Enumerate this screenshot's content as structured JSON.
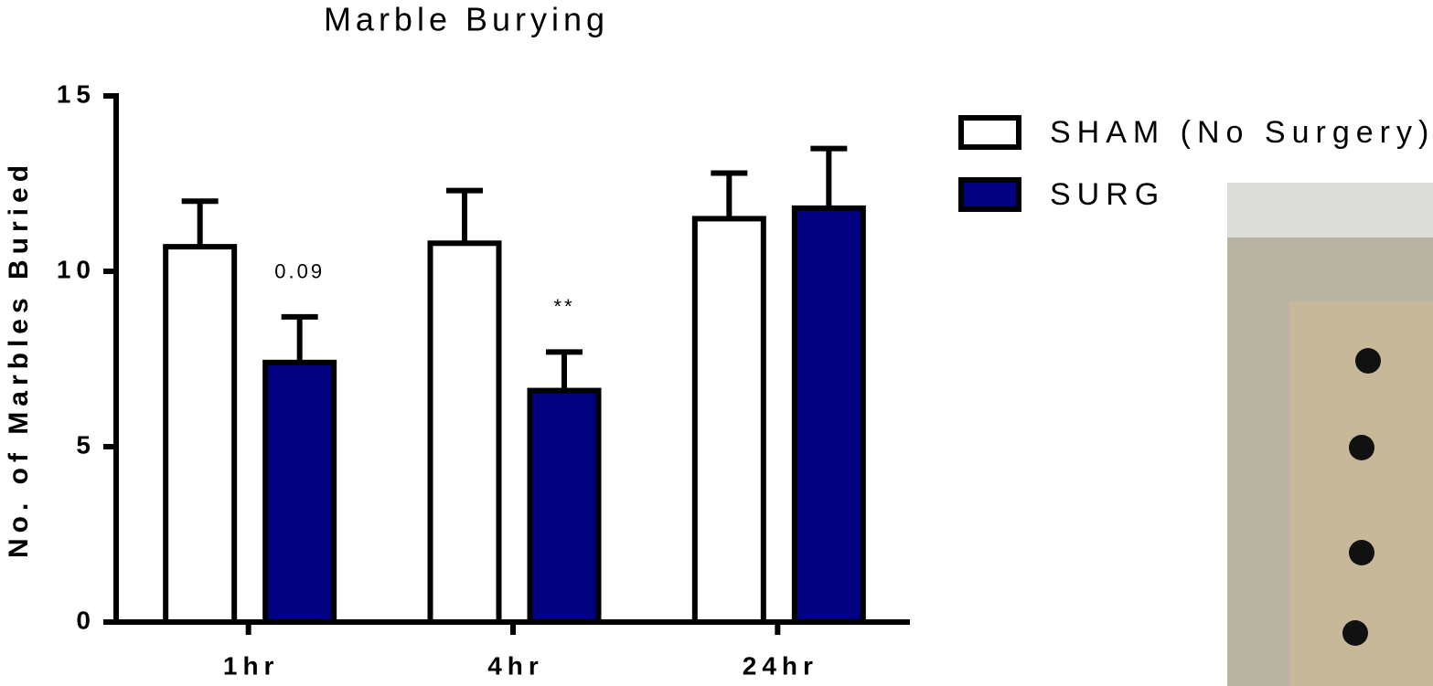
{
  "chart_data": {
    "type": "bar",
    "title": "Marble Burying",
    "y_label": "No. of Marbles Buried",
    "categories": [
      "1hr",
      "4hr",
      "24hr"
    ],
    "series": [
      {
        "name": "SHAM (No Surgery)",
        "color": "#ffffff",
        "values": [
          10.7,
          10.8,
          11.5
        ],
        "errors": [
          1.3,
          1.5,
          1.3
        ]
      },
      {
        "name": "SURG",
        "color": "#000080",
        "values": [
          7.4,
          6.6,
          11.8
        ],
        "errors": [
          1.3,
          1.1,
          1.7
        ]
      }
    ],
    "annotations": [
      {
        "text": "0.09",
        "category": "1hr",
        "series": "SURG"
      },
      {
        "text": "**",
        "category": "4hr",
        "series": "SURG"
      }
    ],
    "ylim": [
      0,
      15
    ],
    "yticks": [
      0,
      5,
      10,
      15
    ],
    "grid": false,
    "legend": "top-right"
  }
}
